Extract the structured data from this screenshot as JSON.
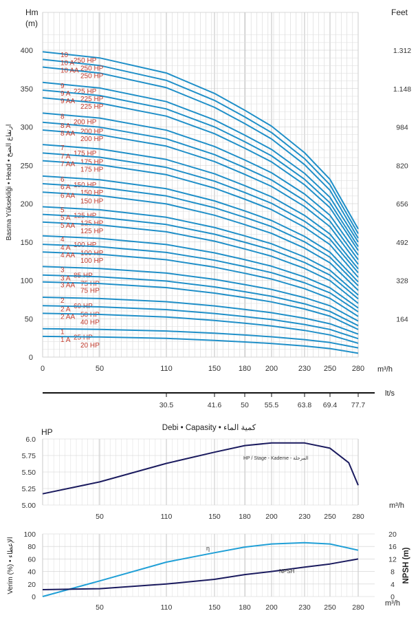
{
  "colors": {
    "curve": "#1f8fc8",
    "label": "#c0392b",
    "dark": "#1a1a5e",
    "grid": "#bbbbbb",
    "eff": "#1f9fd6"
  },
  "x_ticks": [
    "0",
    "50",
    "110",
    "150",
    "180",
    "200",
    "230",
    "250",
    "280"
  ],
  "x_tick_values": [
    0,
    50,
    110,
    150,
    180,
    200,
    230,
    250,
    280
  ],
  "x_unit": "m³/h",
  "chart_data": [
    {
      "type": "line",
      "name": "head",
      "unit_left": "Hm",
      "unit_left2": "(m)",
      "unit_right": "Feet",
      "ylabel": "Basma Yüksekliği • Head • ارتفاع الضخ",
      "ylim": [
        0,
        400
      ],
      "y_ticks": [
        "0",
        "50",
        "100",
        "150",
        "200",
        "250",
        "300",
        "350",
        "400"
      ],
      "feet_ticks": [
        {
          "v": 50,
          "t": "164"
        },
        {
          "v": 100,
          "t": "328"
        },
        {
          "v": 150,
          "t": "492"
        },
        {
          "v": 200,
          "t": "656"
        },
        {
          "v": 250,
          "t": "820"
        },
        {
          "v": 300,
          "t": "984"
        },
        {
          "v": 350,
          "t": "1.148"
        },
        {
          "v": 400,
          "t": "1.312"
        }
      ],
      "x": [
        0,
        50,
        110,
        150,
        180,
        200,
        230,
        250,
        280
      ],
      "series": [
        {
          "name": "10",
          "hp": "250 HP",
          "y0": 398,
          "y280": 167
        },
        {
          "name": "10 A",
          "hp": "250 HP",
          "y0": 388,
          "y280": 161
        },
        {
          "name": "10 AA",
          "hp": "250 HP",
          "y0": 378,
          "y280": 155
        },
        {
          "name": "9",
          "hp": "225 HP",
          "y0": 358,
          "y280": 150
        },
        {
          "name": "9 A",
          "hp": "225 HP",
          "y0": 348,
          "y280": 144
        },
        {
          "name": "9 AA",
          "hp": "225 HP",
          "y0": 338,
          "y280": 139
        },
        {
          "name": "8",
          "hp": "200 HP",
          "y0": 318,
          "y280": 133
        },
        {
          "name": "8 A",
          "hp": "200 HP",
          "y0": 306,
          "y280": 127
        },
        {
          "name": "8 AA",
          "hp": "200 HP",
          "y0": 296,
          "y280": 121
        },
        {
          "name": "7",
          "hp": "175 HP",
          "y0": 277,
          "y280": 115
        },
        {
          "name": "7 A",
          "hp": "175 HP",
          "y0": 266,
          "y280": 110
        },
        {
          "name": "7 AA",
          "hp": "175 HP",
          "y0": 256,
          "y280": 104
        },
        {
          "name": "6",
          "hp": "150 HP",
          "y0": 236,
          "y280": 98
        },
        {
          "name": "6 A",
          "hp": "150 HP",
          "y0": 226,
          "y280": 93
        },
        {
          "name": "6 AA",
          "hp": "150 HP",
          "y0": 215,
          "y280": 87
        },
        {
          "name": "5",
          "hp": "125 HP",
          "y0": 196,
          "y280": 81
        },
        {
          "name": "5 A",
          "hp": "125 HP",
          "y0": 186,
          "y280": 76
        },
        {
          "name": "5 AA",
          "hp": "125 HP",
          "y0": 176,
          "y280": 70
        },
        {
          "name": "4",
          "hp": "100 HP",
          "y0": 158,
          "y280": 64
        },
        {
          "name": "4 A",
          "hp": "100 HP",
          "y0": 147,
          "y280": 59
        },
        {
          "name": "4 AA",
          "hp": "100 HP",
          "y0": 137,
          "y280": 53
        },
        {
          "name": "3",
          "hp": "85 HP",
          "y0": 118,
          "y280": 47
        },
        {
          "name": "3 A",
          "hp": "75 HP",
          "y0": 107,
          "y280": 41
        },
        {
          "name": "3 AA",
          "hp": "75 HP",
          "y0": 98,
          "y280": 36
        },
        {
          "name": "2",
          "hp": "60 HP",
          "y0": 78,
          "y280": 30
        },
        {
          "name": "2 A",
          "hp": "50 HP",
          "y0": 67,
          "y280": 24
        },
        {
          "name": "2 AA",
          "hp": "40 HP",
          "y0": 57,
          "y280": 18
        },
        {
          "name": "1",
          "hp": "25 HP",
          "y0": 37,
          "y280": 12
        },
        {
          "name": "1 A",
          "hp": "20 HP",
          "y0": 27,
          "y280": 5
        }
      ]
    },
    {
      "type": "line",
      "name": "flow-lts",
      "unit": "lt/s",
      "ticks": [
        {
          "x": 110,
          "t": "30.5"
        },
        {
          "x": 150,
          "t": "41.6"
        },
        {
          "x": 180,
          "t": "50"
        },
        {
          "x": 200,
          "t": "55.5"
        },
        {
          "x": 230,
          "t": "63.8"
        },
        {
          "x": 250,
          "t": "69.4"
        },
        {
          "x": 280,
          "t": "77.7"
        }
      ]
    },
    {
      "type": "line",
      "name": "power",
      "title": "Debi • Capasity • كمية الماء",
      "ylabel": "HP",
      "ylim": [
        5.0,
        6.0
      ],
      "y_ticks": [
        "5.00",
        "5.25",
        "5.50",
        "5.75",
        "6.0"
      ],
      "annotation": "HP / Stage - Kademe - المرحلة",
      "points": [
        [
          0,
          5.17
        ],
        [
          50,
          5.35
        ],
        [
          110,
          5.63
        ],
        [
          150,
          5.8
        ],
        [
          180,
          5.9
        ],
        [
          200,
          5.94
        ],
        [
          230,
          5.94
        ],
        [
          250,
          5.86
        ],
        [
          270,
          5.64
        ],
        [
          280,
          5.3
        ]
      ]
    },
    {
      "type": "line",
      "name": "efficiency-npsh",
      "ylabel_left": "Verim (%) • الإعطاء",
      "ylabel_right": "NPSH (m)",
      "ylim_left": [
        0,
        100
      ],
      "ylim_right": [
        0,
        20
      ],
      "y_ticks_left": [
        "0",
        "20",
        "40",
        "60",
        "80",
        "100"
      ],
      "y_ticks_right": [
        "0",
        "4",
        "8",
        "12",
        "16",
        "20"
      ],
      "series": [
        {
          "name": "η",
          "axis": "left",
          "points": [
            [
              0,
              0
            ],
            [
              50,
              25
            ],
            [
              110,
              55
            ],
            [
              150,
              70
            ],
            [
              180,
              79
            ],
            [
              200,
              84
            ],
            [
              230,
              86
            ],
            [
              250,
              84
            ],
            [
              280,
              74
            ]
          ]
        },
        {
          "name": "NPSH",
          "axis": "right",
          "points": [
            [
              0,
              2.2
            ],
            [
              50,
              2.5
            ],
            [
              110,
              4.0
            ],
            [
              150,
              5.5
            ],
            [
              180,
              7.0
            ],
            [
              200,
              8.0
            ],
            [
              230,
              9.4
            ],
            [
              250,
              10.4
            ],
            [
              280,
              12.0
            ]
          ]
        }
      ]
    }
  ]
}
